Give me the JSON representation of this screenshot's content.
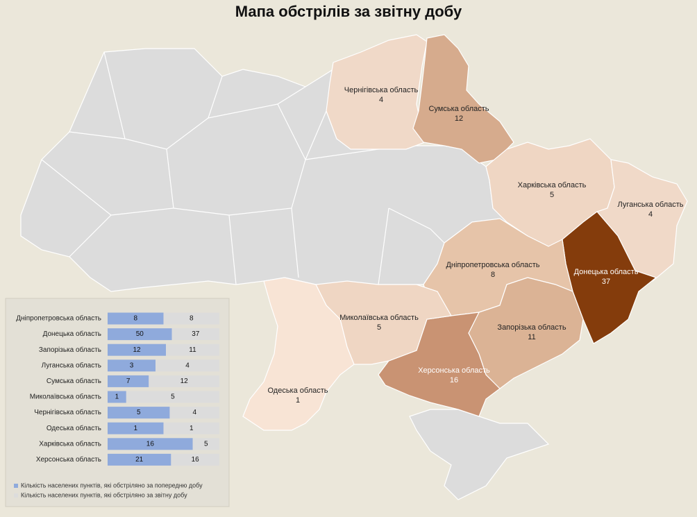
{
  "chart_data": [
    {
      "type": "choropleth",
      "title": "Мапа обстрілів за звітну добу",
      "regions": [
        {
          "name": "Чернігівська область",
          "value": 4,
          "color": "#f0d9c8"
        },
        {
          "name": "Сумська область",
          "value": 12,
          "color": "#d6ab8d"
        },
        {
          "name": "Харківська область",
          "value": 5,
          "color": "#efd6c3"
        },
        {
          "name": "Луганська область",
          "value": 4,
          "color": "#f0d9c8"
        },
        {
          "name": "Донецька область",
          "value": 37,
          "color": "#843c0c"
        },
        {
          "name": "Дніпропетровська область",
          "value": 8,
          "color": "#e6c4a9"
        },
        {
          "name": "Запорізька область",
          "value": 11,
          "color": "#dbb395"
        },
        {
          "name": "Херсонська область",
          "value": 16,
          "color": "#c99373"
        },
        {
          "name": "Миколаївська область",
          "value": 5,
          "color": "#efd6c3"
        },
        {
          "name": "Одеська область",
          "value": 1,
          "color": "#f8e4d5"
        }
      ]
    },
    {
      "type": "bar",
      "orientation": "horizontal",
      "stacking": "percent",
      "categories": [
        "Дніпропетровська область",
        "Донецька область",
        "Запорізька область",
        "Луганська область",
        "Сумська область",
        "Миколаївська область",
        "Чернігівська область",
        "Одеська область",
        "Харківська область",
        "Херсонська область"
      ],
      "series": [
        {
          "name": "Кількість населених пунктів, які обстріляно за попередню добу",
          "color": "#8faadc",
          "values": [
            8,
            50,
            12,
            3,
            7,
            1,
            5,
            1,
            16,
            21
          ]
        },
        {
          "name": "Кількість населених пунктів, які обстріляно за звітну добу",
          "color": "#dcdcdc",
          "values": [
            8,
            37,
            11,
            4,
            12,
            5,
            4,
            1,
            5,
            16
          ]
        }
      ]
    }
  ]
}
